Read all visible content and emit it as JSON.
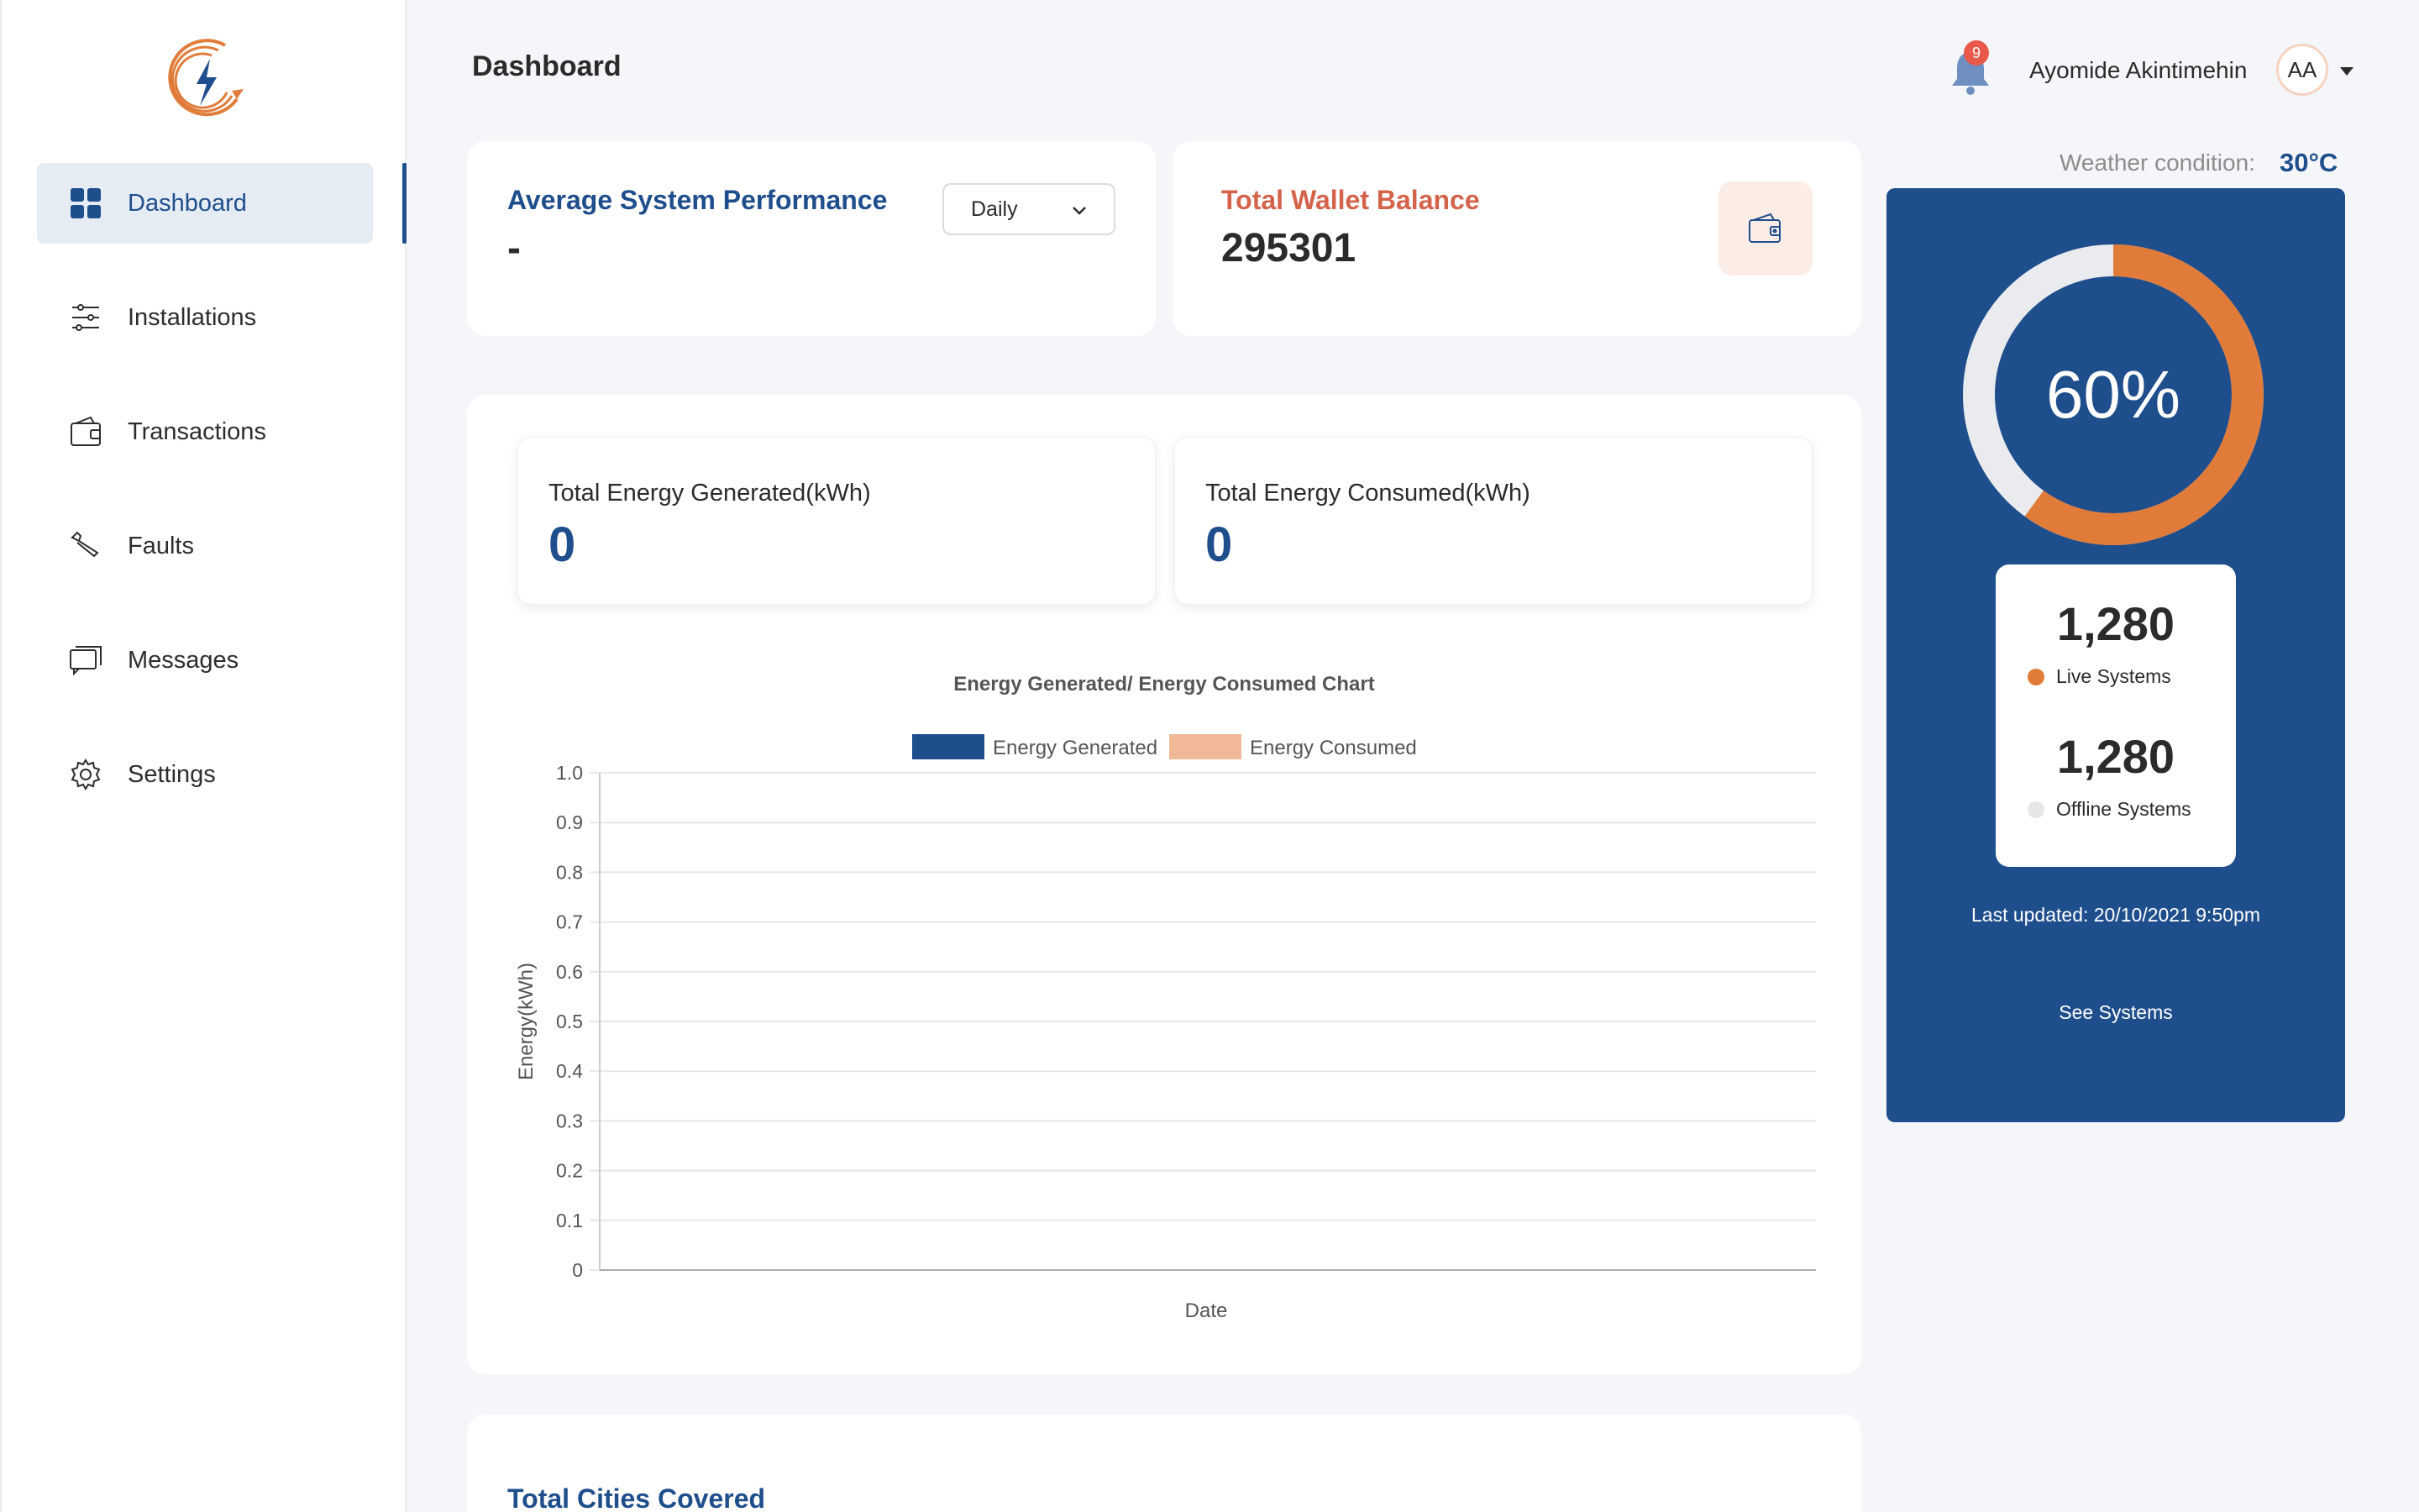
{
  "sidebar": {
    "logo": "bolt-logo",
    "items": [
      {
        "label": "Dashboard",
        "icon": "grid-icon",
        "active": true
      },
      {
        "label": "Installations",
        "icon": "sliders-icon"
      },
      {
        "label": "Transactions",
        "icon": "wallet-icon"
      },
      {
        "label": "Faults",
        "icon": "wrench-icon"
      },
      {
        "label": "Messages",
        "icon": "messages-icon"
      },
      {
        "label": "Settings",
        "icon": "gear-icon"
      }
    ]
  },
  "header": {
    "title": "Dashboard",
    "notification_count": "9",
    "user_name": "Ayomide Akintimehin",
    "avatar_initials": "AA"
  },
  "performance": {
    "title": "Average System Performance",
    "value": "-",
    "period": "Daily"
  },
  "wallet": {
    "title": "Total Wallet Balance",
    "value": "295301"
  },
  "energy": {
    "generated_label": "Total Energy Generated(kWh)",
    "generated_value": "0",
    "consumed_label": "Total Energy Consumed(kWh)",
    "consumed_value": "0"
  },
  "chart_data": {
    "type": "bar",
    "title": "Energy Generated/ Energy Consumed Chart",
    "xlabel": "Date",
    "ylabel": "Energy(kWh)",
    "ylim": [
      0,
      1.0
    ],
    "yticks": [
      "0",
      "0.1",
      "0.2",
      "0.3",
      "0.4",
      "0.5",
      "0.6",
      "0.7",
      "0.8",
      "0.9",
      "1.0"
    ],
    "categories": [],
    "series": [
      {
        "name": "Energy Generated",
        "color": "#1f4e8c",
        "values": []
      },
      {
        "name": "Energy Consumed",
        "color": "#f0b896",
        "values": []
      }
    ],
    "grid": true,
    "legend": "top-center"
  },
  "cities": {
    "title": "Total Cities Covered"
  },
  "weather": {
    "label": "Weather condition:",
    "value": "30°C"
  },
  "systems": {
    "percent_label": "60%",
    "percent": 60,
    "live_count": "1,280",
    "live_label": "Live Systems",
    "offline_count": "1,280",
    "offline_label": "Offline Systems",
    "last_updated": "Last updated: 20/10/2021 9:50pm",
    "see_systems": "See Systems",
    "colors": {
      "panel": "#1f4e8c",
      "live": "#e07b39",
      "offline": "#e6e6e6"
    }
  }
}
